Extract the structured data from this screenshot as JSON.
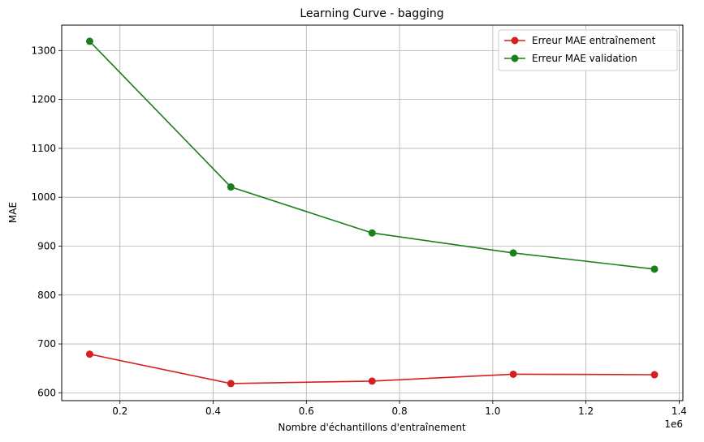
{
  "chart_data": {
    "type": "line",
    "title": "Learning Curve - bagging",
    "xlabel": "Nombre d'échantillons d'entraînement",
    "ylabel": "MAE",
    "x_offset_label": "1e6",
    "x": [
      0.135,
      0.438,
      0.741,
      1.044,
      1.347
    ],
    "xlim": [
      0.075,
      1.408
    ],
    "ylim": [
      584,
      1352
    ],
    "xticks": [
      0.2,
      0.4,
      0.6,
      0.8,
      1.0,
      1.2,
      1.4
    ],
    "xtick_labels": [
      "0.2",
      "0.4",
      "0.6",
      "0.8",
      "1.0",
      "1.2",
      "1.4"
    ],
    "yticks": [
      600,
      700,
      800,
      900,
      1000,
      1100,
      1200,
      1300
    ],
    "ytick_labels": [
      "600",
      "700",
      "800",
      "900",
      "1000",
      "1100",
      "1200",
      "1300"
    ],
    "grid": true,
    "legend_position": "top-right",
    "series": [
      {
        "name": "Erreur MAE entraînement",
        "color": "#d62020",
        "values": [
          679,
          619,
          624,
          638,
          637
        ]
      },
      {
        "name": "Erreur MAE validation",
        "color": "#1a7f1a",
        "values": [
          1319,
          1021,
          927,
          886,
          853
        ]
      }
    ]
  }
}
